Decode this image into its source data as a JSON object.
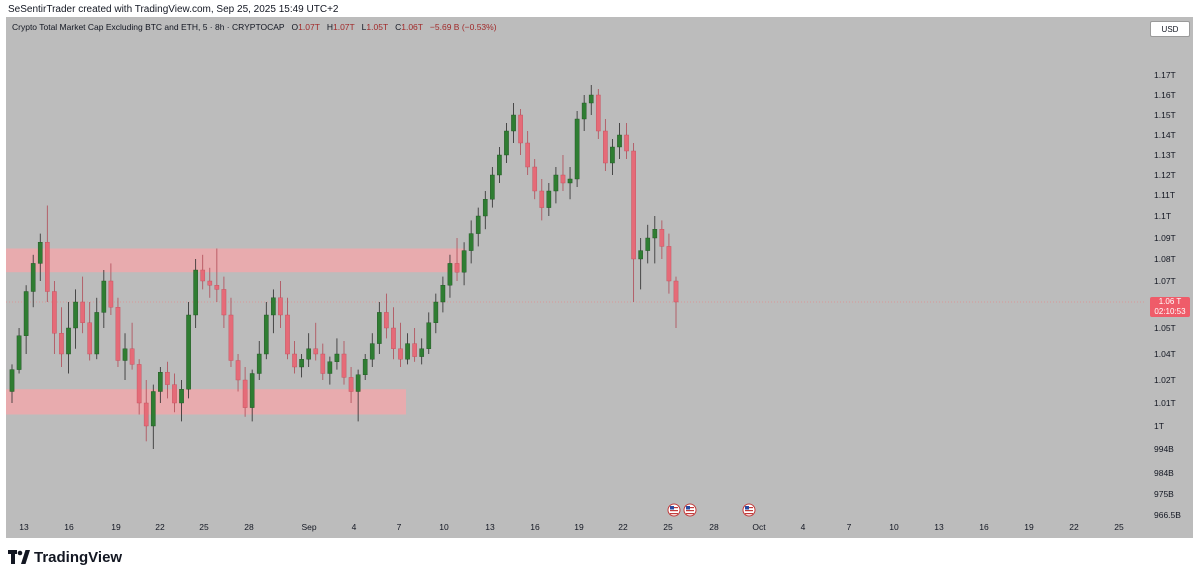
{
  "header": {
    "created_by": "SeSentirTrader created with TradingView.com, Sep 25, 2025 15:49 UTC+2"
  },
  "legend": {
    "symbol": "Crypto Total Market Cap Excluding BTC and ETH, 5 · 8h · CRYPTOCAP",
    "o_key": "O",
    "o_value": "1.07T",
    "h_key": "H",
    "h_value": "1.07T",
    "l_key": "L",
    "l_value": "1.05T",
    "c_key": "C",
    "c_value": "1.06T",
    "change": "−5.69 B (−0.53%)"
  },
  "toolbar": {
    "currency_label": "USD"
  },
  "price_tag": {
    "price": "1.06 T",
    "countdown": "02:10:53"
  },
  "brand": {
    "logo_text": "TradingView",
    "logo_icon": "tradingview-logo-icon"
  },
  "colors": {
    "background": "#bcbcbc",
    "up": "#2f7d32",
    "down": "#e56b78",
    "zone": "#f0a8ab",
    "price_line": "#e08a8a"
  },
  "chart_data": {
    "type": "candlestick",
    "symbol": "CRYPTOCAP:OTHERS",
    "timeframe": "8h",
    "y_axis_labels": [
      "1.17T",
      "1.16T",
      "1.15T",
      "1.14T",
      "1.13T",
      "1.12T",
      "1.11T",
      "1.1T",
      "1.09T",
      "1.08T",
      "1.07T",
      "1.06T",
      "1.05T",
      "1.04T",
      "1.02T",
      "1.01T",
      "1T",
      "994B",
      "984B",
      "975B",
      "966.5B"
    ],
    "x_axis_labels": [
      "13",
      "16",
      "19",
      "22",
      "25",
      "28",
      "Sep",
      "4",
      "7",
      "10",
      "13",
      "16",
      "19",
      "22",
      "25",
      "28",
      "Oct",
      "4",
      "7",
      "10",
      "13",
      "16",
      "19",
      "22",
      "25"
    ],
    "zones": [
      {
        "from_label": "Aug 13",
        "to_label": "Sep 10",
        "bottom": 1.074,
        "top": 1.085
      },
      {
        "from_label": "Aug 13",
        "to_label": "Sep 7",
        "bottom": 1.005,
        "top": 1.016
      }
    ],
    "current_price": 1.06,
    "event_markers": [
      {
        "date": "Sep 25"
      },
      {
        "date": "Sep 26"
      },
      {
        "date": "Oct 1"
      }
    ],
    "candles": [
      [
        1.015,
        1.032,
        1.01,
        1.028
      ],
      [
        1.028,
        1.05,
        1.025,
        1.047
      ],
      [
        1.047,
        1.068,
        1.04,
        1.065
      ],
      [
        1.065,
        1.082,
        1.058,
        1.078
      ],
      [
        1.078,
        1.092,
        1.07,
        1.088
      ],
      [
        1.088,
        1.105,
        1.06,
        1.065
      ],
      [
        1.065,
        1.07,
        1.04,
        1.048
      ],
      [
        1.048,
        1.058,
        1.03,
        1.04
      ],
      [
        1.04,
        1.06,
        1.025,
        1.05
      ],
      [
        1.05,
        1.066,
        1.042,
        1.06
      ],
      [
        1.06,
        1.072,
        1.048,
        1.052
      ],
      [
        1.052,
        1.06,
        1.035,
        1.04
      ],
      [
        1.04,
        1.062,
        1.036,
        1.056
      ],
      [
        1.056,
        1.075,
        1.05,
        1.07
      ],
      [
        1.07,
        1.078,
        1.055,
        1.058
      ],
      [
        1.058,
        1.062,
        1.03,
        1.035
      ],
      [
        1.035,
        1.048,
        1.02,
        1.042
      ],
      [
        1.042,
        1.052,
        1.028,
        1.032
      ],
      [
        1.032,
        1.036,
        1.005,
        1.01
      ],
      [
        1.01,
        1.02,
        0.996,
        1.0
      ],
      [
        1.0,
        1.018,
        0.994,
        1.015
      ],
      [
        1.015,
        1.03,
        1.01,
        1.026
      ],
      [
        1.026,
        1.034,
        1.012,
        1.018
      ],
      [
        1.018,
        1.025,
        1.006,
        1.01
      ],
      [
        1.01,
        1.02,
        1.002,
        1.016
      ],
      [
        1.016,
        1.06,
        1.012,
        1.055
      ],
      [
        1.055,
        1.08,
        1.05,
        1.075
      ],
      [
        1.075,
        1.082,
        1.066,
        1.07
      ],
      [
        1.07,
        1.076,
        1.062,
        1.068
      ],
      [
        1.068,
        1.085,
        1.06,
        1.066
      ],
      [
        1.066,
        1.072,
        1.05,
        1.055
      ],
      [
        1.055,
        1.062,
        1.03,
        1.035
      ],
      [
        1.035,
        1.04,
        1.015,
        1.02
      ],
      [
        1.02,
        1.03,
        1.004,
        1.008
      ],
      [
        1.008,
        1.028,
        1.002,
        1.025
      ],
      [
        1.025,
        1.045,
        1.02,
        1.04
      ],
      [
        1.04,
        1.06,
        1.036,
        1.055
      ],
      [
        1.055,
        1.066,
        1.048,
        1.062
      ],
      [
        1.062,
        1.07,
        1.05,
        1.055
      ],
      [
        1.055,
        1.062,
        1.036,
        1.04
      ],
      [
        1.04,
        1.045,
        1.025,
        1.03
      ],
      [
        1.03,
        1.04,
        1.022,
        1.036
      ],
      [
        1.036,
        1.048,
        1.03,
        1.042
      ],
      [
        1.042,
        1.052,
        1.035,
        1.04
      ],
      [
        1.04,
        1.044,
        1.02,
        1.025
      ],
      [
        1.025,
        1.038,
        1.018,
        1.034
      ],
      [
        1.034,
        1.046,
        1.028,
        1.04
      ],
      [
        1.04,
        1.045,
        1.018,
        1.022
      ],
      [
        1.022,
        1.03,
        1.01,
        1.015
      ],
      [
        1.015,
        1.028,
        1.002,
        1.024
      ],
      [
        1.024,
        1.04,
        1.02,
        1.036
      ],
      [
        1.036,
        1.048,
        1.03,
        1.044
      ],
      [
        1.044,
        1.06,
        1.04,
        1.056
      ],
      [
        1.056,
        1.064,
        1.046,
        1.05
      ],
      [
        1.05,
        1.058,
        1.036,
        1.042
      ],
      [
        1.042,
        1.052,
        1.03,
        1.036
      ],
      [
        1.036,
        1.048,
        1.032,
        1.044
      ],
      [
        1.044,
        1.05,
        1.034,
        1.038
      ],
      [
        1.038,
        1.046,
        1.032,
        1.042
      ],
      [
        1.042,
        1.056,
        1.04,
        1.052
      ],
      [
        1.052,
        1.064,
        1.048,
        1.06
      ],
      [
        1.06,
        1.072,
        1.056,
        1.068
      ],
      [
        1.068,
        1.082,
        1.062,
        1.078
      ],
      [
        1.078,
        1.09,
        1.07,
        1.074
      ],
      [
        1.074,
        1.088,
        1.068,
        1.084
      ],
      [
        1.084,
        1.098,
        1.078,
        1.092
      ],
      [
        1.092,
        1.104,
        1.086,
        1.1
      ],
      [
        1.1,
        1.112,
        1.094,
        1.108
      ],
      [
        1.108,
        1.124,
        1.104,
        1.12
      ],
      [
        1.12,
        1.134,
        1.116,
        1.13
      ],
      [
        1.13,
        1.146,
        1.126,
        1.142
      ],
      [
        1.142,
        1.156,
        1.136,
        1.15
      ],
      [
        1.15,
        1.153,
        1.13,
        1.136
      ],
      [
        1.136,
        1.142,
        1.12,
        1.124
      ],
      [
        1.124,
        1.128,
        1.108,
        1.112
      ],
      [
        1.112,
        1.118,
        1.098,
        1.104
      ],
      [
        1.104,
        1.116,
        1.1,
        1.112
      ],
      [
        1.112,
        1.124,
        1.106,
        1.12
      ],
      [
        1.12,
        1.13,
        1.112,
        1.116
      ],
      [
        1.116,
        1.124,
        1.108,
        1.118
      ],
      [
        1.118,
        1.152,
        1.114,
        1.148
      ],
      [
        1.148,
        1.16,
        1.142,
        1.156
      ],
      [
        1.156,
        1.165,
        1.15,
        1.16
      ],
      [
        1.16,
        1.163,
        1.138,
        1.142
      ],
      [
        1.142,
        1.148,
        1.122,
        1.126
      ],
      [
        1.126,
        1.138,
        1.12,
        1.134
      ],
      [
        1.134,
        1.146,
        1.128,
        1.14
      ],
      [
        1.14,
        1.146,
        1.128,
        1.132
      ],
      [
        1.132,
        1.136,
        1.06,
        1.08
      ],
      [
        1.08,
        1.09,
        1.066,
        1.084
      ],
      [
        1.084,
        1.096,
        1.078,
        1.09
      ],
      [
        1.09,
        1.1,
        1.078,
        1.094
      ],
      [
        1.094,
        1.098,
        1.08,
        1.086
      ],
      [
        1.086,
        1.092,
        1.064,
        1.07
      ],
      [
        1.07,
        1.072,
        1.05,
        1.06
      ]
    ]
  }
}
